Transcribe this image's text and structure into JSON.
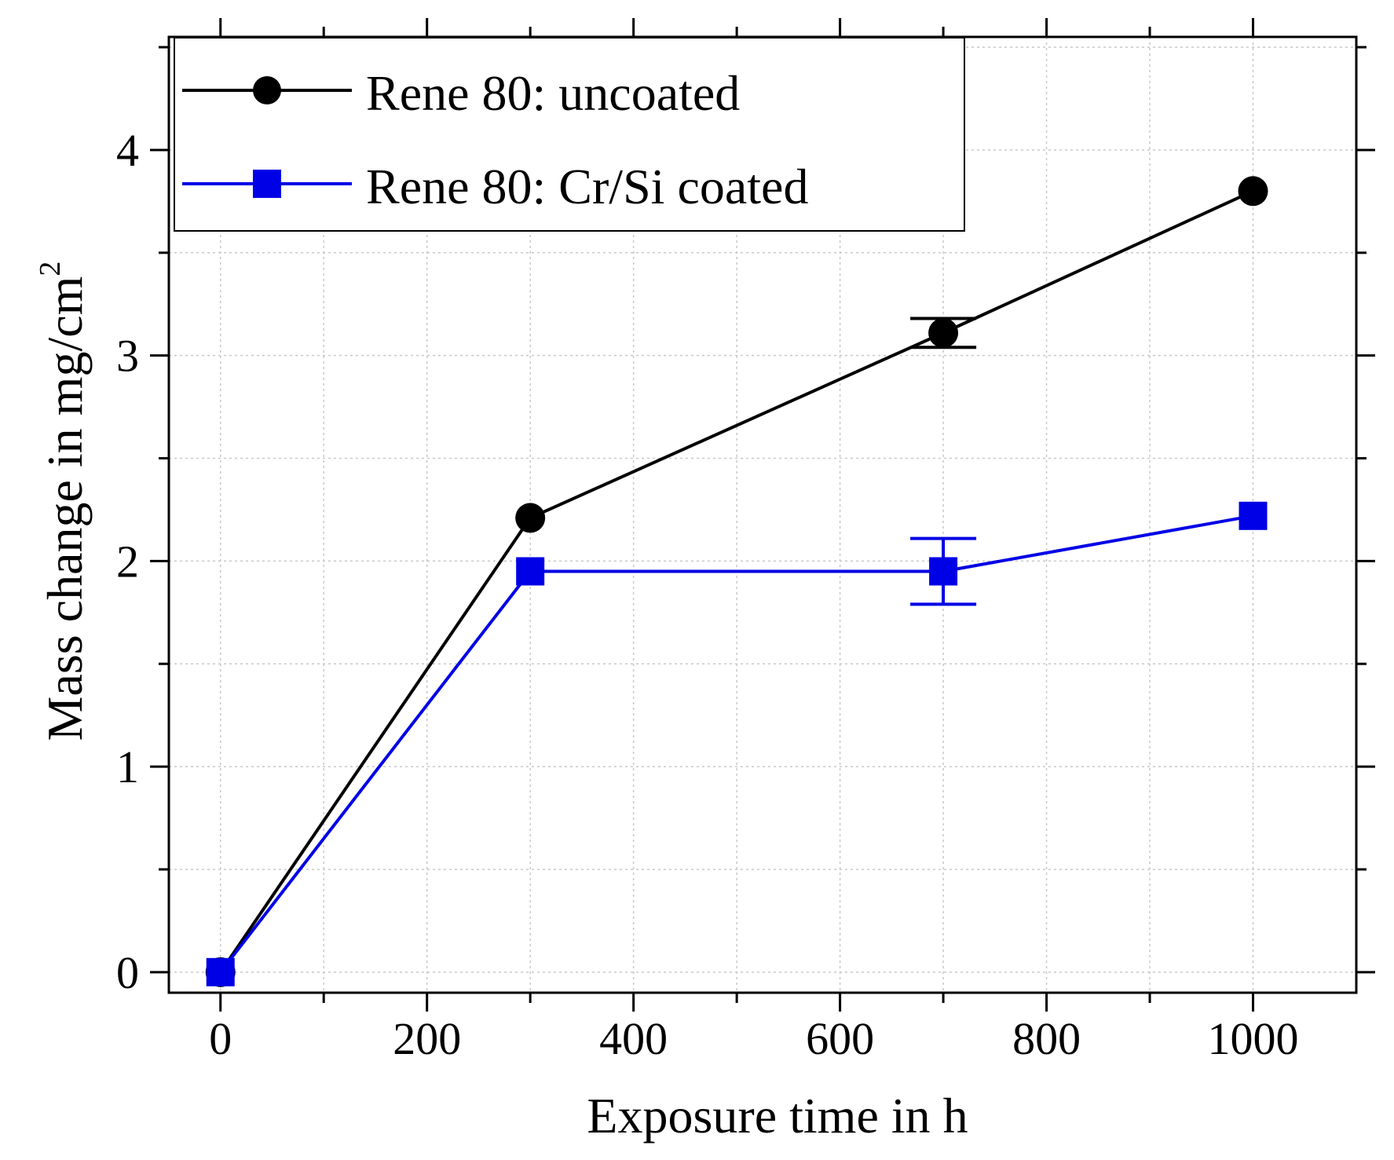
{
  "chart_data": {
    "type": "line",
    "title": "",
    "xlabel": "Exposure time in h",
    "ylabel": "Mass change in mg/cm",
    "ylabel_superscript": "2",
    "xlim": [
      -50,
      1100
    ],
    "ylim": [
      -0.1,
      4.55
    ],
    "x_ticks": [
      0,
      200,
      400,
      600,
      800,
      1000
    ],
    "x_tick_labels": [
      "0",
      "200",
      "400",
      "600",
      "800",
      "1000"
    ],
    "y_ticks": [
      0,
      1,
      2,
      3,
      4
    ],
    "y_tick_labels": [
      "0",
      "1",
      "2",
      "3",
      "4"
    ],
    "x_minor_step": 100,
    "y_minor_step": 0.5,
    "grid": true,
    "legend_position": "top-left",
    "series": [
      {
        "name": "Rene 80: uncoated",
        "color": "#000000",
        "marker": "circle",
        "x": [
          0,
          300,
          700,
          1000
        ],
        "y": [
          0,
          2.21,
          3.11,
          3.8
        ],
        "error": [
          0,
          0,
          0.07,
          0
        ]
      },
      {
        "name": "Rene 80: Cr/Si coated",
        "color": "#0000e6",
        "marker": "square",
        "x": [
          0,
          300,
          700,
          1000
        ],
        "y": [
          0,
          1.95,
          1.95,
          2.22
        ],
        "error": [
          0,
          0,
          0.16,
          0
        ]
      }
    ]
  }
}
